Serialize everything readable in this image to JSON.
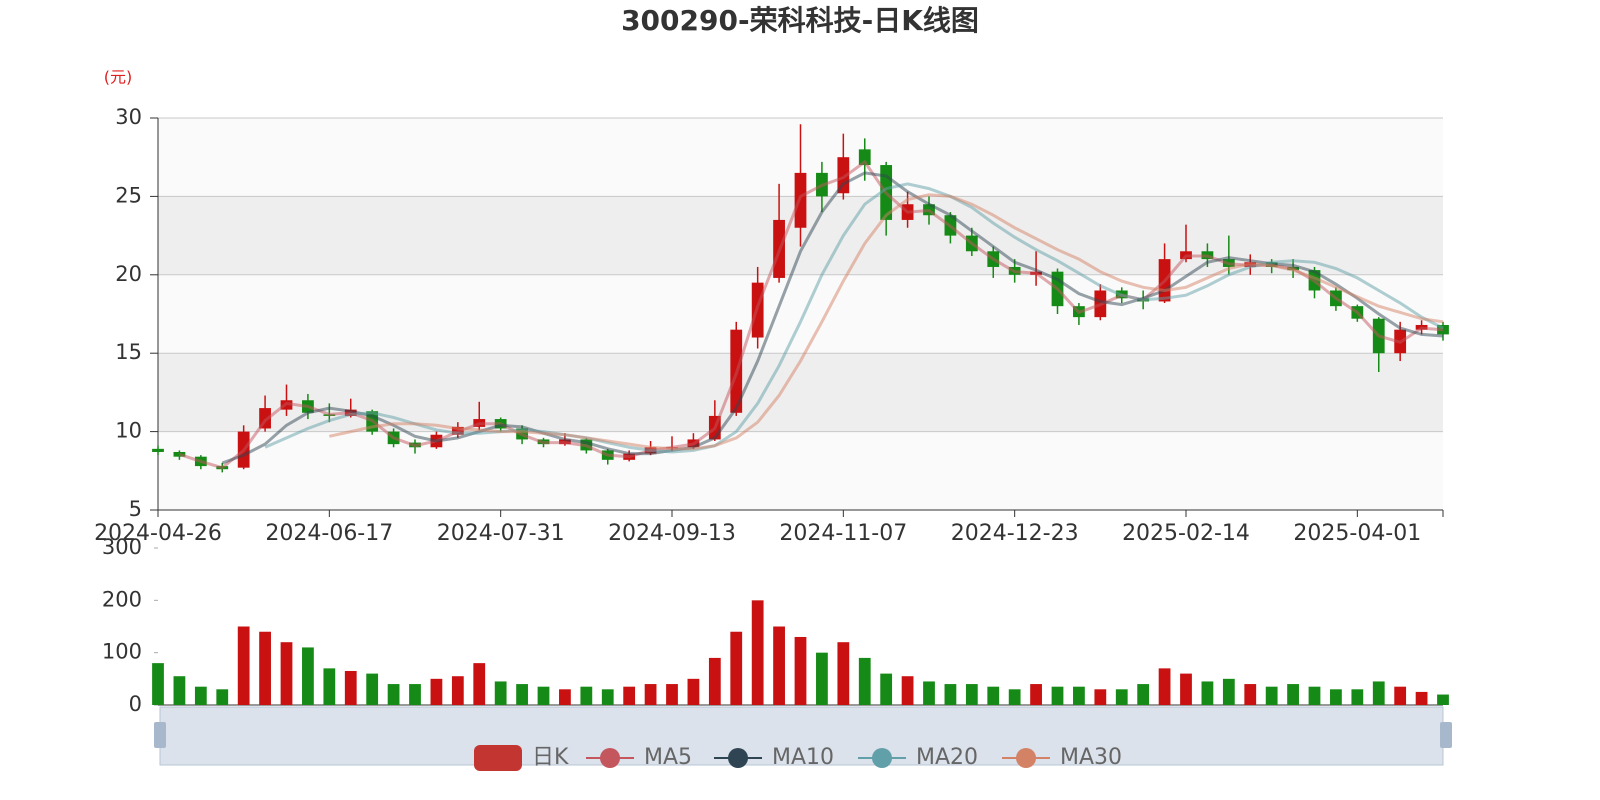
{
  "chart_data": {
    "type": "candlestick",
    "title": "300290-荣科科技-日K线图",
    "y_unit": "(元)",
    "categories": [
      "2024-04-26",
      null,
      null,
      null,
      null,
      null,
      null,
      null,
      "2024-06-17",
      null,
      null,
      null,
      null,
      null,
      null,
      null,
      "2024-07-31",
      null,
      null,
      null,
      null,
      null,
      null,
      null,
      "2024-09-13",
      null,
      null,
      null,
      null,
      null,
      null,
      null,
      "2024-11-07",
      null,
      null,
      null,
      null,
      null,
      null,
      null,
      "2024-12-23",
      null,
      null,
      null,
      null,
      null,
      null,
      null,
      "2025-02-14",
      null,
      null,
      null,
      null,
      null,
      null,
      null,
      "2025-04-01",
      null,
      null,
      null,
      null
    ],
    "ylim": [
      5,
      30
    ],
    "yticks": [
      5,
      10,
      15,
      20,
      25,
      30
    ],
    "split_area": true,
    "up_color": "#c91111",
    "down_color": "#168a16",
    "series": [
      {
        "name": "日K",
        "color": "#c23531",
        "values": [
          [
            8.9,
            8.7,
            8.5,
            9.1
          ],
          [
            8.7,
            8.4,
            8.2,
            8.8
          ],
          [
            8.4,
            7.8,
            7.6,
            8.5
          ],
          [
            7.8,
            7.6,
            7.4,
            8.0
          ],
          [
            7.7,
            10.0,
            7.6,
            10.4
          ],
          [
            10.2,
            11.5,
            10.0,
            12.3
          ],
          [
            11.4,
            12.0,
            11.0,
            13.0
          ],
          [
            12.0,
            11.2,
            10.8,
            12.4
          ],
          [
            11.1,
            11.0,
            10.6,
            11.8
          ],
          [
            11.0,
            11.4,
            10.9,
            12.1
          ],
          [
            11.3,
            10.0,
            9.8,
            11.4
          ],
          [
            10.0,
            9.2,
            9.0,
            10.2
          ],
          [
            9.3,
            9.0,
            8.6,
            9.5
          ],
          [
            9.0,
            9.8,
            8.9,
            10.0
          ],
          [
            9.8,
            10.3,
            9.6,
            10.6
          ],
          [
            10.3,
            10.8,
            10.1,
            11.9
          ],
          [
            10.8,
            10.2,
            10.0,
            10.9
          ],
          [
            10.2,
            9.5,
            9.2,
            10.4
          ],
          [
            9.5,
            9.2,
            9.0,
            9.6
          ],
          [
            9.2,
            9.5,
            9.1,
            9.9
          ],
          [
            9.5,
            8.8,
            8.6,
            9.6
          ],
          [
            8.8,
            8.2,
            7.9,
            8.9
          ],
          [
            8.2,
            8.6,
            8.1,
            8.8
          ],
          [
            8.6,
            9.0,
            8.5,
            9.4
          ],
          [
            9.0,
            9.0,
            8.8,
            9.7
          ],
          [
            9.0,
            9.5,
            8.9,
            9.9
          ],
          [
            9.5,
            11.0,
            9.4,
            12.0
          ],
          [
            11.2,
            16.5,
            11.0,
            17.0
          ],
          [
            16.0,
            19.5,
            15.3,
            20.5
          ],
          [
            19.8,
            23.5,
            19.5,
            25.8
          ],
          [
            23.0,
            26.5,
            21.8,
            29.6
          ],
          [
            26.5,
            25.0,
            24.0,
            27.2
          ],
          [
            25.2,
            27.5,
            24.8,
            29.0
          ],
          [
            28.0,
            27.0,
            26.0,
            28.7
          ],
          [
            27.0,
            23.5,
            22.5,
            27.2
          ],
          [
            23.5,
            24.5,
            23.0,
            25.3
          ],
          [
            24.5,
            23.8,
            23.2,
            25.0
          ],
          [
            23.8,
            22.5,
            22.0,
            24.0
          ],
          [
            22.5,
            21.5,
            21.2,
            23.0
          ],
          [
            21.5,
            20.5,
            19.8,
            21.8
          ],
          [
            20.5,
            20.0,
            19.5,
            21.0
          ],
          [
            20.0,
            20.2,
            19.3,
            21.5
          ],
          [
            20.2,
            18.0,
            17.5,
            20.4
          ],
          [
            18.0,
            17.3,
            16.8,
            18.2
          ],
          [
            17.3,
            19.0,
            17.1,
            19.4
          ],
          [
            19.0,
            18.5,
            18.2,
            19.2
          ],
          [
            18.5,
            18.3,
            17.8,
            19.0
          ],
          [
            18.3,
            21.0,
            18.2,
            22.0
          ],
          [
            21.0,
            21.5,
            20.8,
            23.2
          ],
          [
            21.5,
            21.0,
            20.5,
            22.0
          ],
          [
            21.0,
            20.5,
            20.0,
            22.5
          ],
          [
            20.5,
            20.8,
            20.0,
            21.3
          ],
          [
            20.8,
            20.5,
            20.1,
            21.0
          ],
          [
            20.5,
            20.3,
            19.8,
            21.0
          ],
          [
            20.3,
            19.0,
            18.5,
            20.5
          ],
          [
            19.0,
            18.0,
            17.7,
            19.2
          ],
          [
            18.0,
            17.2,
            17.0,
            18.1
          ],
          [
            17.2,
            15.0,
            13.8,
            17.3
          ],
          [
            15.0,
            16.5,
            14.5,
            17.0
          ],
          [
            16.5,
            16.8,
            16.2,
            17.1
          ],
          [
            16.8,
            16.2,
            15.8,
            17.0
          ]
        ]
      },
      {
        "name": "MA5",
        "color": "#c4565e",
        "values": [
          null,
          8.55,
          8.1,
          7.7,
          8.8,
          10.7,
          11.8,
          11.6,
          11.1,
          11.2,
          10.7,
          9.6,
          9.1,
          9.4,
          10.0,
          10.5,
          10.5,
          9.8,
          9.3,
          9.3,
          9.1,
          8.5,
          8.4,
          8.8,
          9.0,
          9.2,
          10.2,
          13.7,
          18.0,
          21.5,
          25.0,
          25.7,
          26.2,
          27.2,
          25.2,
          24.0,
          24.1,
          23.1,
          22.0,
          21.0,
          20.2,
          20.1,
          19.1,
          17.6,
          18.1,
          18.7,
          18.4,
          19.6,
          21.2,
          21.2,
          20.7,
          20.6,
          20.6,
          20.4,
          19.6,
          18.5,
          17.6,
          16.1,
          15.7,
          16.6,
          16.5
        ]
      },
      {
        "name": "MA10",
        "color": "#2f4554",
        "values": [
          null,
          null,
          null,
          8.0,
          8.5,
          9.2,
          10.4,
          11.2,
          11.5,
          11.3,
          11.0,
          10.4,
          9.7,
          9.4,
          9.6,
          10.0,
          10.4,
          10.3,
          9.9,
          9.5,
          9.3,
          8.9,
          8.6,
          8.6,
          8.8,
          9.0,
          9.6,
          11.5,
          14.5,
          18.0,
          21.5,
          24.0,
          25.8,
          26.5,
          26.3,
          25.3,
          24.5,
          23.8,
          22.8,
          21.8,
          20.8,
          20.3,
          19.7,
          18.8,
          18.3,
          18.1,
          18.5,
          19.0,
          19.9,
          20.8,
          21.1,
          20.9,
          20.7,
          20.6,
          20.2,
          19.4,
          18.5,
          17.5,
          16.6,
          16.2,
          16.1
        ]
      },
      {
        "name": "MA20",
        "color": "#61a0a8",
        "values": [
          null,
          null,
          null,
          null,
          null,
          9.0,
          9.6,
          10.2,
          10.7,
          11.1,
          11.2,
          10.9,
          10.5,
          10.1,
          9.9,
          9.9,
          10.0,
          10.1,
          10.0,
          9.8,
          9.6,
          9.3,
          9.0,
          8.8,
          8.7,
          8.8,
          9.1,
          10.0,
          11.8,
          14.2,
          17.0,
          20.0,
          22.5,
          24.5,
          25.5,
          25.8,
          25.5,
          25.0,
          24.3,
          23.3,
          22.4,
          21.6,
          20.9,
          20.1,
          19.3,
          18.7,
          18.4,
          18.5,
          18.7,
          19.3,
          20.0,
          20.5,
          20.8,
          20.9,
          20.8,
          20.4,
          19.8,
          19.0,
          18.2,
          17.3,
          16.6
        ]
      },
      {
        "name": "MA30",
        "color": "#d48265",
        "values": [
          null,
          null,
          null,
          null,
          null,
          null,
          null,
          null,
          9.7,
          10.0,
          10.3,
          10.5,
          10.5,
          10.4,
          10.2,
          10.1,
          10.0,
          10.0,
          9.9,
          9.8,
          9.6,
          9.4,
          9.2,
          9.0,
          8.9,
          8.9,
          9.1,
          9.6,
          10.6,
          12.3,
          14.5,
          17.0,
          19.6,
          22.0,
          23.8,
          24.8,
          25.1,
          25.0,
          24.5,
          23.8,
          23.0,
          22.3,
          21.6,
          21.0,
          20.2,
          19.6,
          19.2,
          19.0,
          19.2,
          19.8,
          20.4,
          20.7,
          20.6,
          20.3,
          19.8,
          19.2,
          18.6,
          18.0,
          17.6,
          17.2,
          17.0
        ]
      }
    ],
    "volume": {
      "ylim": [
        0,
        300
      ],
      "yticks": [
        0,
        100,
        200,
        300
      ],
      "values": [
        80,
        55,
        35,
        30,
        150,
        140,
        120,
        110,
        70,
        65,
        60,
        40,
        40,
        50,
        55,
        80,
        45,
        40,
        35,
        30,
        35,
        30,
        35,
        40,
        40,
        50,
        90,
        140,
        200,
        150,
        130,
        100,
        120,
        90,
        60,
        55,
        45,
        40,
        40,
        35,
        30,
        40,
        35,
        35,
        30,
        30,
        40,
        70,
        60,
        45,
        50,
        40,
        35,
        40,
        35,
        30,
        30,
        45,
        35,
        25,
        20
      ]
    }
  }
}
